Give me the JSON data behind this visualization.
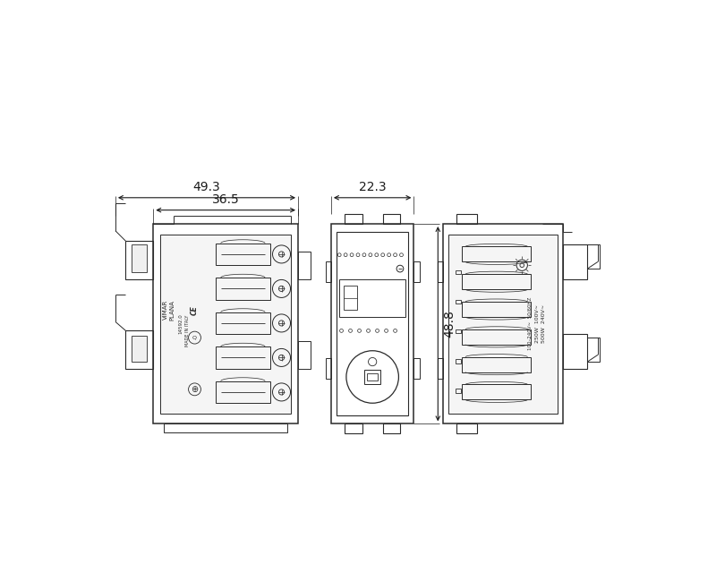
{
  "bg_color": "#ffffff",
  "line_color": "#2a2a2a",
  "dim_color": "#1a1a1a",
  "dim1_label": "49.3",
  "dim2_label": "36.5",
  "dim3_label": "22.3",
  "dim4_label": "48.8",
  "fig_width": 8.0,
  "fig_height": 6.4
}
